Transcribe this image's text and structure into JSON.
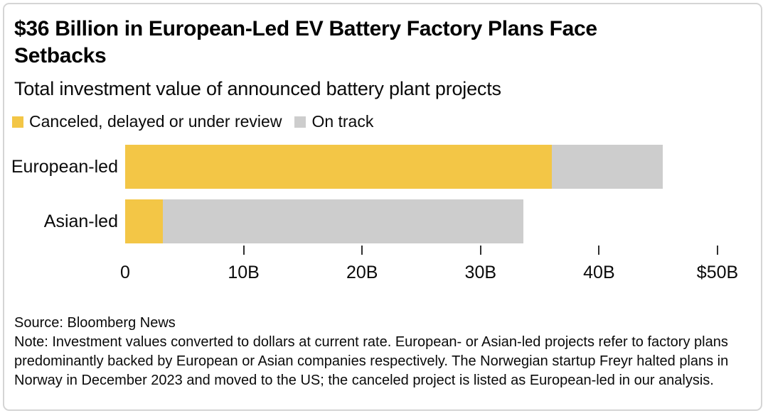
{
  "header": {
    "title": "$36 Billion in European-Led EV Battery Factory Plans Face Setbacks",
    "title_lines": [
      "$36 Billion in European-Led EV Battery Factory Plans Face",
      "Setbacks"
    ],
    "subtitle": "Total investment value of announced battery plant projects"
  },
  "chart_data": {
    "type": "bar",
    "orientation": "horizontal",
    "stacked": true,
    "categories": [
      "European-led",
      "Asian-led"
    ],
    "series": [
      {
        "name": "Canceled, delayed or under review",
        "color": "#F3C646",
        "values": [
          36,
          3.2
        ]
      },
      {
        "name": "On track",
        "color": "#CDCDCD",
        "values": [
          9.4,
          30.4
        ]
      }
    ],
    "totals_estimate": [
      45.4,
      33.6
    ],
    "unit": "US dollars, billions",
    "xlim": [
      0,
      50
    ],
    "x_ticks": [
      {
        "label": "0",
        "value": 0
      },
      {
        "label": "10B",
        "value": 10
      },
      {
        "label": "20B",
        "value": 20
      },
      {
        "label": "30B",
        "value": 30
      },
      {
        "label": "40B",
        "value": 40
      },
      {
        "label": "$50B",
        "value": 50
      }
    ],
    "grid": false,
    "legend_position": "top-left"
  },
  "footer": {
    "source": "Source: Bloomberg News",
    "note": "Note: Investment values converted to dollars at current rate. European- or Asian-led projects refer to factory plans predominantly backed by European or Asian companies respectively. The Norwegian startup Freyr halted plans in Norway in December 2023 and moved to the US; the canceled project is listed as European-led in our analysis."
  },
  "colors": {
    "canceled_yellow": "#F3C646",
    "on_track_gray": "#CDCDCD",
    "card_border": "#D5D5D5",
    "text": "#0A0A0A",
    "tick": "#303030"
  }
}
